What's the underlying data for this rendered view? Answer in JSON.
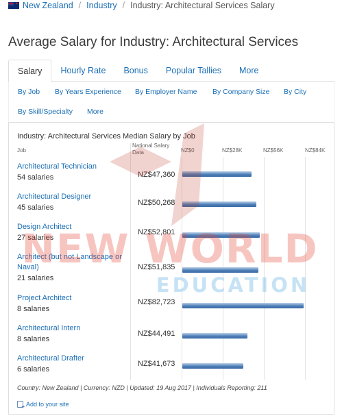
{
  "breadcrumb": {
    "country": "New Zealand",
    "industry": "Industry",
    "current": "Industry: Architectural Services Salary"
  },
  "page_title": "Average Salary for Industry: Architectural Services",
  "tabs": [
    "Salary",
    "Hourly Rate",
    "Bonus",
    "Popular Tallies",
    "More"
  ],
  "subnav": [
    "By Job",
    "By Years Experience",
    "By Employer Name",
    "By Company Size",
    "By City",
    "By Skill/Specialty",
    "More"
  ],
  "card": {
    "title": "Industry: Architectural Services Median Salary by Job",
    "col_job": "Job",
    "col_data": "National Salary Data",
    "axis_ticks": [
      "NZ$0",
      "NZ$28K",
      "NZ$56K",
      "NZ$84K"
    ],
    "footer": "Country: New Zealand | Currency: NZD | Updated: 19 Aug 2017 | Individuals Reporting: 211",
    "add_to_site": "Add to your site"
  },
  "rows": [
    {
      "job": "Architectural Technician",
      "count": "54 salaries",
      "salary_text": "NZ$47,360",
      "value": 47360
    },
    {
      "job": "Architectural Designer",
      "count": "45 salaries",
      "salary_text": "NZ$50,268",
      "value": 50268
    },
    {
      "job": "Design Architect",
      "count": "27 salaries",
      "salary_text": "NZ$52,801",
      "value": 52801
    },
    {
      "job": "Architect (but not Landscape or Naval)",
      "count": "21 salaries",
      "salary_text": "NZ$51,835",
      "value": 51835
    },
    {
      "job": "Project Architect",
      "count": "8 salaries",
      "salary_text": "NZ$82,723",
      "value": 82723
    },
    {
      "job": "Architectural Intern",
      "count": "8 salaries",
      "salary_text": "NZ$44,491",
      "value": 44491
    },
    {
      "job": "Architectural Drafter",
      "count": "6 salaries",
      "salary_text": "NZ$41,673",
      "value": 41673
    }
  ],
  "axis_max": 84000,
  "watermark": {
    "line1": "NEW WORLD",
    "line2": "EDUCATION"
  },
  "colors": {
    "link": "#1a6eb5",
    "bar": "#4f7fb8"
  }
}
